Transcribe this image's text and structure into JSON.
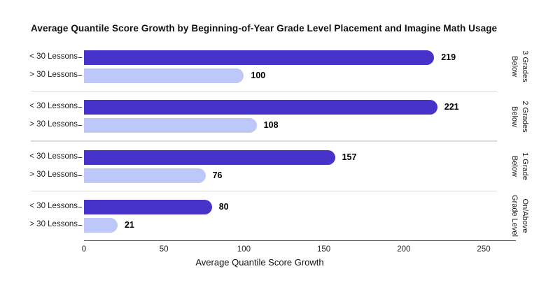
{
  "title": "Average Quantile Score Growth by Beginning-of-Year Grade Level Placement and Imagine Math Usage",
  "colors": {
    "dark_bar": "#4733C9",
    "light_bar": "#BDC7F8"
  },
  "chart_data": {
    "type": "bar",
    "orientation": "horizontal",
    "title": "Average Quantile Score Growth by Beginning-of-Year Grade Level Placement and Imagine Math Usage",
    "xlabel": "Average Quantile Score Growth",
    "xlim": [
      0,
      270
    ],
    "xticks": [
      0,
      50,
      100,
      150,
      200,
      250
    ],
    "grid": false,
    "legend": "none",
    "row_labels": [
      "< 30 Lessons",
      "> 30 Lessons"
    ],
    "groups": [
      {
        "label": "3 Grades Below",
        "label_lines": [
          "3 Grades",
          "Below"
        ],
        "values": [
          219,
          100
        ]
      },
      {
        "label": "2 Grades Below",
        "label_lines": [
          "2 Grades",
          "Below"
        ],
        "values": [
          221,
          108
        ]
      },
      {
        "label": "1 Grade Below",
        "label_lines": [
          "1 Grade",
          "Below"
        ],
        "values": [
          157,
          76
        ]
      },
      {
        "label": "On/Above Grade Level",
        "label_lines": [
          "On/Above",
          "Grade Level"
        ],
        "values": [
          80,
          21
        ]
      }
    ],
    "series": [
      {
        "name": "< 30 Lessons",
        "color": "#4733C9",
        "values": [
          219,
          221,
          157,
          80
        ]
      },
      {
        "name": "> 30 Lessons",
        "color": "#BDC7F8",
        "values": [
          100,
          108,
          76,
          21
        ]
      }
    ]
  }
}
